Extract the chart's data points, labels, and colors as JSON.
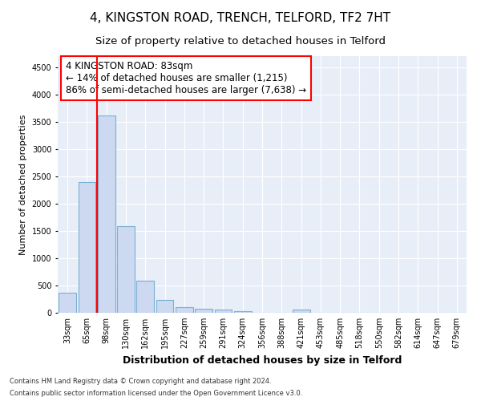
{
  "title": "4, KINGSTON ROAD, TRENCH, TELFORD, TF2 7HT",
  "subtitle": "Size of property relative to detached houses in Telford",
  "xlabel": "Distribution of detached houses by size in Telford",
  "ylabel": "Number of detached properties",
  "categories": [
    "33sqm",
    "65sqm",
    "98sqm",
    "130sqm",
    "162sqm",
    "195sqm",
    "227sqm",
    "259sqm",
    "291sqm",
    "324sqm",
    "356sqm",
    "388sqm",
    "421sqm",
    "453sqm",
    "485sqm",
    "518sqm",
    "550sqm",
    "582sqm",
    "614sqm",
    "647sqm",
    "679sqm"
  ],
  "values": [
    370,
    2400,
    3620,
    1580,
    590,
    230,
    110,
    70,
    55,
    35,
    0,
    0,
    55,
    0,
    0,
    0,
    0,
    0,
    0,
    0,
    0
  ],
  "bar_color": "#ccd9f0",
  "bar_edge_color": "#7aafd4",
  "ylim": [
    0,
    4700
  ],
  "yticks": [
    0,
    500,
    1000,
    1500,
    2000,
    2500,
    3000,
    3500,
    4000,
    4500
  ],
  "vline_color": "red",
  "annotation_text": "4 KINGSTON ROAD: 83sqm\n← 14% of detached houses are smaller (1,215)\n86% of semi-detached houses are larger (7,638) →",
  "annotation_box_color": "white",
  "annotation_box_edge_color": "red",
  "footnote_line1": "Contains HM Land Registry data © Crown copyright and database right 2024.",
  "footnote_line2": "Contains public sector information licensed under the Open Government Licence v3.0.",
  "title_fontsize": 11,
  "subtitle_fontsize": 9.5,
  "xlabel_fontsize": 9,
  "ylabel_fontsize": 8,
  "annotation_fontsize": 8.5,
  "tick_fontsize": 7,
  "footnote_fontsize": 6,
  "background_color": "#e8eef8"
}
